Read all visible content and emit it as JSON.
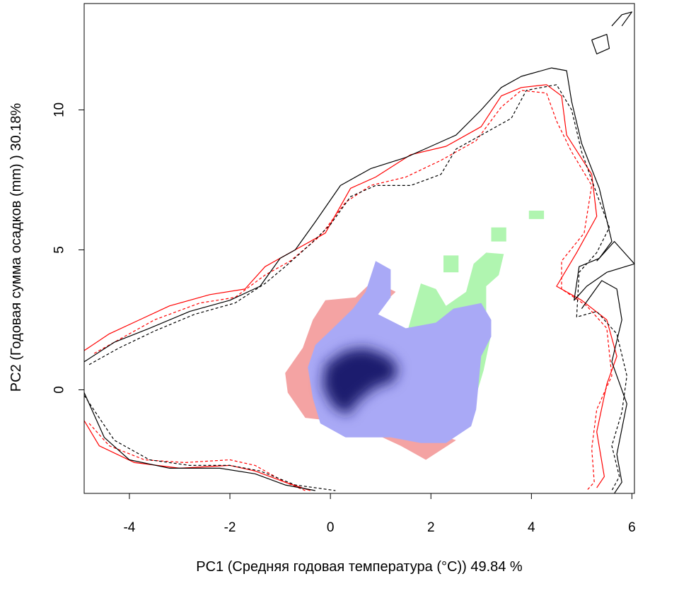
{
  "chart_data": {
    "type": "heatmap",
    "title": "",
    "xlabel": "PC1 (Средняя годовая температура (°C)) 49.84 %",
    "ylabel": "PC2 (Годовая сумма осадков  (mm) ) 30.18%",
    "xlim": [
      -4.9,
      6.05
    ],
    "ylim": [
      -3.7,
      13.8
    ],
    "x_ticks": [
      -4,
      -2,
      0,
      2,
      4,
      6
    ],
    "y_ticks": [
      0,
      5,
      10
    ],
    "x_tick_labels": [
      "-4",
      "-2",
      "0",
      "2",
      "4",
      "6"
    ],
    "y_tick_labels": [
      "0",
      "5",
      "10"
    ],
    "grid": false,
    "legend": "none",
    "colors": {
      "only_first_niche": "#f4a3a3",
      "overlap_low": "#a9a9f6",
      "overlap_high": "#1a1a6e",
      "only_second_niche": "#b0f5b0",
      "contour_first": "#ff0000",
      "contour_second": "#000000",
      "axis": "#000000"
    },
    "series": [
      {
        "kind": "region",
        "color": "#f4a3a3",
        "points": [
          [
            -0.9,
            0.6
          ],
          [
            -0.55,
            1.5
          ],
          [
            -0.35,
            2.5
          ],
          [
            -0.1,
            3.2
          ],
          [
            0.5,
            3.3
          ],
          [
            0.85,
            3.9
          ],
          [
            1.3,
            3.5
          ],
          [
            1.0,
            3.0
          ],
          [
            0.4,
            2.0
          ],
          [
            0.2,
            -1.0
          ],
          [
            1.4,
            -2.0
          ],
          [
            1.9,
            -2.5
          ],
          [
            2.5,
            -1.8
          ],
          [
            2.0,
            -1.5
          ],
          [
            -0.5,
            -1.0
          ],
          [
            -0.85,
            -0.1
          ]
        ]
      },
      {
        "kind": "region",
        "color": "#b0f5b0",
        "points": [
          [
            1.55,
            2.2
          ],
          [
            1.8,
            3.8
          ],
          [
            2.1,
            3.6
          ],
          [
            2.3,
            3.0
          ],
          [
            2.7,
            3.5
          ],
          [
            2.85,
            4.5
          ],
          [
            3.1,
            4.9
          ],
          [
            3.45,
            4.85
          ],
          [
            3.35,
            4.1
          ],
          [
            3.1,
            3.7
          ],
          [
            3.1,
            2.7
          ],
          [
            3.2,
            2.0
          ],
          [
            3.05,
            0.7
          ],
          [
            2.9,
            -0.2
          ],
          [
            2.6,
            0.3
          ],
          [
            2.2,
            1.8
          ]
        ]
      },
      {
        "kind": "region",
        "color": "#b0f5b0",
        "points": [
          [
            3.2,
            5.3
          ],
          [
            3.5,
            5.3
          ],
          [
            3.5,
            5.8
          ],
          [
            3.2,
            5.8
          ]
        ]
      },
      {
        "kind": "region",
        "color": "#b0f5b0",
        "points": [
          [
            2.25,
            4.2
          ],
          [
            2.55,
            4.2
          ],
          [
            2.55,
            4.8
          ],
          [
            2.25,
            4.8
          ]
        ]
      },
      {
        "kind": "region",
        "color": "#b0f5b0",
        "points": [
          [
            3.95,
            6.1
          ],
          [
            4.25,
            6.1
          ],
          [
            4.25,
            6.4
          ],
          [
            3.95,
            6.4
          ]
        ]
      },
      {
        "kind": "region",
        "color": "#a9a9f6",
        "points": [
          [
            -0.3,
            1.6
          ],
          [
            0.05,
            2.2
          ],
          [
            0.45,
            2.9
          ],
          [
            0.7,
            3.5
          ],
          [
            0.9,
            4.6
          ],
          [
            1.2,
            4.3
          ],
          [
            1.2,
            3.3
          ],
          [
            0.95,
            2.7
          ],
          [
            1.5,
            2.2
          ],
          [
            2.1,
            2.4
          ],
          [
            2.45,
            2.9
          ],
          [
            3.0,
            3.1
          ],
          [
            3.2,
            2.5
          ],
          [
            3.2,
            1.9
          ],
          [
            3.0,
            1.2
          ],
          [
            2.9,
            -0.7
          ],
          [
            2.8,
            -1.3
          ],
          [
            2.3,
            -1.9
          ],
          [
            1.8,
            -1.9
          ],
          [
            1.2,
            -1.7
          ],
          [
            0.3,
            -1.7
          ],
          [
            -0.2,
            -1.2
          ],
          [
            -0.35,
            -0.3
          ],
          [
            -0.45,
            0.8
          ]
        ]
      },
      {
        "kind": "region",
        "color": "#1a1a6e",
        "points": [
          [
            -0.1,
            0.9
          ],
          [
            0.3,
            1.4
          ],
          [
            0.7,
            1.5
          ],
          [
            1.15,
            1.2
          ],
          [
            1.35,
            0.8
          ],
          [
            1.25,
            0.3
          ],
          [
            0.9,
            0.1
          ],
          [
            0.55,
            -0.4
          ],
          [
            0.35,
            -0.9
          ],
          [
            0.05,
            -0.6
          ],
          [
            -0.15,
            0.1
          ]
        ]
      },
      {
        "kind": "contour",
        "color": "#ff0000",
        "dash": "solid",
        "points": [
          [
            -4.9,
            1.4
          ],
          [
            -4.4,
            2.0
          ],
          [
            -3.8,
            2.5
          ],
          [
            -3.2,
            3.0
          ],
          [
            -2.4,
            3.4
          ],
          [
            -1.7,
            3.6
          ],
          [
            -1.3,
            4.4
          ],
          [
            -0.8,
            4.9
          ],
          [
            -0.1,
            5.6
          ],
          [
            0.4,
            7.2
          ],
          [
            0.9,
            7.6
          ],
          [
            1.6,
            8.4
          ],
          [
            2.3,
            8.7
          ],
          [
            3.0,
            9.4
          ],
          [
            3.4,
            10.5
          ],
          [
            3.8,
            10.8
          ],
          [
            4.3,
            10.9
          ],
          [
            4.6,
            10.5
          ],
          [
            4.7,
            9.1
          ],
          [
            5.2,
            7.7
          ],
          [
            5.3,
            6.2
          ],
          [
            4.9,
            4.9
          ],
          [
            4.5,
            3.7
          ],
          [
            5.0,
            3.2
          ],
          [
            5.5,
            2.5
          ],
          [
            5.7,
            1.2
          ],
          [
            5.5,
            0.2
          ],
          [
            5.3,
            -1.5
          ],
          [
            5.45,
            -3.1
          ],
          [
            5.3,
            -3.5
          ]
        ]
      },
      {
        "kind": "contour",
        "color": "#ff0000",
        "dash": "dashed",
        "points": [
          [
            -4.7,
            1.3
          ],
          [
            -4.1,
            1.9
          ],
          [
            -3.5,
            2.5
          ],
          [
            -2.6,
            3.1
          ],
          [
            -1.9,
            3.3
          ],
          [
            -1.3,
            4.1
          ],
          [
            -0.8,
            4.6
          ],
          [
            -0.2,
            5.5
          ],
          [
            0.3,
            6.7
          ],
          [
            0.8,
            7.3
          ],
          [
            1.5,
            7.6
          ],
          [
            2.2,
            8.2
          ],
          [
            2.9,
            8.9
          ],
          [
            3.4,
            10.1
          ],
          [
            3.8,
            10.7
          ],
          [
            4.3,
            10.6
          ],
          [
            4.5,
            9.6
          ],
          [
            4.8,
            8.5
          ],
          [
            5.2,
            7.3
          ],
          [
            5.05,
            5.6
          ],
          [
            4.6,
            4.6
          ],
          [
            4.6,
            3.6
          ],
          [
            5.1,
            3.0
          ],
          [
            5.5,
            2.2
          ],
          [
            5.6,
            0.5
          ],
          [
            5.3,
            -0.7
          ],
          [
            5.2,
            -2.1
          ],
          [
            5.25,
            -3.3
          ],
          [
            5.1,
            -3.6
          ]
        ]
      },
      {
        "kind": "contour",
        "color": "#ff0000",
        "dash": "solid",
        "points": [
          [
            -4.9,
            -1.1
          ],
          [
            -4.6,
            -2.0
          ],
          [
            -3.9,
            -2.6
          ],
          [
            -3.0,
            -2.8
          ],
          [
            -2.0,
            -2.7
          ],
          [
            -1.5,
            -2.9
          ],
          [
            -0.9,
            -3.3
          ],
          [
            -0.4,
            -3.6
          ]
        ]
      },
      {
        "kind": "contour",
        "color": "#ff0000",
        "dash": "dashed",
        "points": [
          [
            -4.8,
            -1.2
          ],
          [
            -4.4,
            -2.0
          ],
          [
            -3.7,
            -2.5
          ],
          [
            -2.9,
            -2.6
          ],
          [
            -2.0,
            -2.5
          ],
          [
            -1.5,
            -2.7
          ],
          [
            -0.9,
            -3.3
          ],
          [
            -0.5,
            -3.6
          ]
        ]
      },
      {
        "kind": "contour",
        "color": "#000000",
        "dash": "solid",
        "points": [
          [
            -4.9,
            1.0
          ],
          [
            -4.3,
            1.7
          ],
          [
            -3.6,
            2.2
          ],
          [
            -2.8,
            2.8
          ],
          [
            -2.0,
            3.2
          ],
          [
            -1.4,
            3.7
          ],
          [
            -1.0,
            4.7
          ],
          [
            -0.7,
            5.0
          ],
          [
            -0.3,
            6.0
          ],
          [
            0.2,
            7.3
          ],
          [
            0.8,
            7.9
          ],
          [
            1.5,
            8.3
          ],
          [
            2.0,
            8.7
          ],
          [
            2.5,
            9.1
          ],
          [
            3.0,
            10.0
          ],
          [
            3.4,
            10.8
          ],
          [
            3.8,
            11.2
          ],
          [
            4.4,
            11.5
          ],
          [
            4.7,
            11.4
          ],
          [
            4.8,
            10.3
          ],
          [
            5.0,
            8.8
          ],
          [
            5.35,
            7.2
          ],
          [
            5.6,
            5.3
          ],
          [
            5.35,
            4.7
          ],
          [
            4.95,
            4.4
          ],
          [
            4.85,
            3.2
          ],
          [
            5.1,
            3.7
          ],
          [
            5.5,
            4.2
          ],
          [
            6.05,
            4.5
          ]
        ]
      },
      {
        "kind": "contour",
        "color": "#000000",
        "dash": "dashed",
        "points": [
          [
            -4.8,
            0.9
          ],
          [
            -4.2,
            1.5
          ],
          [
            -3.5,
            2.1
          ],
          [
            -2.7,
            2.7
          ],
          [
            -1.9,
            3.1
          ],
          [
            -1.3,
            3.8
          ],
          [
            -0.9,
            4.4
          ],
          [
            -0.4,
            5.2
          ],
          [
            0.0,
            5.9
          ],
          [
            0.4,
            6.9
          ],
          [
            0.9,
            7.3
          ],
          [
            1.6,
            7.3
          ],
          [
            2.2,
            7.7
          ],
          [
            2.5,
            8.6
          ],
          [
            3.1,
            9.2
          ],
          [
            3.6,
            9.7
          ],
          [
            3.9,
            10.7
          ],
          [
            4.5,
            10.9
          ],
          [
            4.8,
            10.0
          ],
          [
            5.0,
            8.5
          ],
          [
            5.3,
            7.0
          ],
          [
            5.55,
            5.8
          ],
          [
            5.3,
            4.9
          ],
          [
            4.95,
            4.2
          ],
          [
            4.9,
            2.6
          ],
          [
            5.3,
            2.8
          ],
          [
            5.7,
            2.0
          ],
          [
            5.9,
            0.5
          ],
          [
            5.8,
            -0.8
          ],
          [
            5.6,
            -2.0
          ],
          [
            5.75,
            -3.1
          ],
          [
            5.6,
            -3.6
          ]
        ]
      },
      {
        "kind": "contour",
        "color": "#000000",
        "dash": "solid",
        "points": [
          [
            -4.9,
            -0.1
          ],
          [
            -4.5,
            -1.7
          ],
          [
            -4.0,
            -2.5
          ],
          [
            -3.2,
            -2.8
          ],
          [
            -2.2,
            -2.8
          ],
          [
            -1.5,
            -3.0
          ],
          [
            -0.9,
            -3.4
          ],
          [
            -0.3,
            -3.6
          ]
        ]
      },
      {
        "kind": "contour",
        "color": "#000000",
        "dash": "dashed",
        "points": [
          [
            -4.9,
            -0.2
          ],
          [
            -4.3,
            -1.8
          ],
          [
            -3.6,
            -2.5
          ],
          [
            -2.8,
            -2.7
          ],
          [
            -2.0,
            -2.7
          ],
          [
            -1.4,
            -2.9
          ],
          [
            -0.7,
            -3.4
          ],
          [
            0.1,
            -3.6
          ]
        ]
      },
      {
        "kind": "contour",
        "color": "#000000",
        "dash": "solid",
        "points": [
          [
            5.3,
            4.6
          ],
          [
            5.65,
            5.3
          ],
          [
            5.9,
            4.8
          ],
          [
            6.05,
            4.5
          ]
        ]
      },
      {
        "kind": "contour",
        "color": "#000000",
        "dash": "solid",
        "points": [
          [
            5.0,
            2.9
          ],
          [
            5.4,
            3.9
          ],
          [
            5.7,
            3.6
          ],
          [
            5.8,
            2.5
          ],
          [
            5.6,
            1.0
          ],
          [
            5.9,
            -0.5
          ],
          [
            5.7,
            -2.3
          ],
          [
            5.8,
            -3.3
          ],
          [
            5.65,
            -3.7
          ]
        ]
      },
      {
        "kind": "contour",
        "color": "#000000",
        "dash": "solid",
        "points": [
          [
            5.2,
            12.5
          ],
          [
            5.5,
            12.7
          ],
          [
            5.55,
            12.2
          ],
          [
            5.3,
            12.0
          ],
          [
            5.2,
            12.5
          ]
        ]
      },
      {
        "kind": "contour",
        "color": "#000000",
        "dash": "solid",
        "points": [
          [
            5.6,
            13.0
          ],
          [
            5.8,
            13.4
          ],
          [
            6.0,
            13.5
          ],
          [
            5.8,
            13.0
          ]
        ]
      }
    ]
  }
}
